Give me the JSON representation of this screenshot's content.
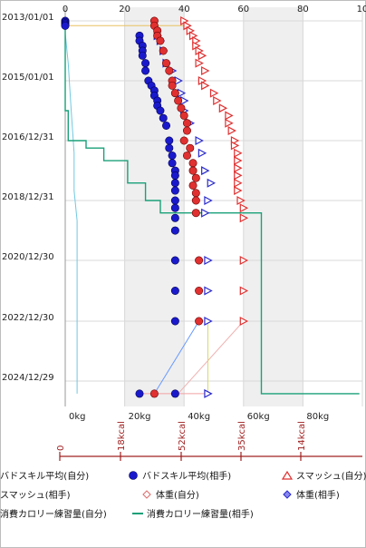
{
  "colors": {
    "badminton_self": "#1a1acc",
    "badminton_opp": "#1a1acc",
    "smash_self": "#e03030",
    "smash_opp": "#e05050",
    "weight_self": "#e07070",
    "weight_opp": "#2a2acc",
    "cal_self": "#70c8e0",
    "cal_opp": "#1aa078",
    "band": "#efefef",
    "grid": "#d8d8d8",
    "cal_axis": "#a02020"
  },
  "legend": [
    {
      "key": "badminton_self",
      "label": "バドスキル平均(自分)",
      "marker": "circle"
    },
    {
      "key": "badminton_opp",
      "label": "バドスキル平均(相手)",
      "marker": "circle"
    },
    {
      "key": "smash_self",
      "label": "スマッシュ(自分)",
      "marker": "triangle"
    },
    {
      "key": "smash_opp",
      "label": "スマッシュ(相手)",
      "marker": "open-diamond"
    },
    {
      "key": "weight_self",
      "label": "体重(自分)",
      "marker": "open-diamond"
    },
    {
      "key": "weight_opp",
      "label": "体重(相手)",
      "marker": "diamond"
    },
    {
      "key": "cal_self",
      "label": "消費カロリー練習量(自分)",
      "marker": "line"
    },
    {
      "key": "cal_opp",
      "label": "消費カロリー練習量(相手)",
      "marker": "line"
    }
  ],
  "chart_data": {
    "type": "scatter",
    "orientation": "date-on-vertical-axis",
    "x_ticks_top": [
      "0",
      "20",
      "40",
      "60",
      "80",
      "10"
    ],
    "x_ticks_bottom": [
      "0kg",
      "20kg",
      "40kg",
      "60kg",
      "80kg"
    ],
    "xlim": [
      0,
      100
    ],
    "y_ticks": [
      "2013/01/01",
      "2015/01/01",
      "2016/12/31",
      "2018/12/31",
      "2020/12/30",
      "2022/12/30",
      "2024/12/29"
    ],
    "calorie_axis_ticks": [
      "0",
      "18kcal",
      "52kcal",
      "35kcal",
      "14kcal"
    ],
    "calorie_axis_ticks_display": [
      "0",
      "18kcal",
      "52kcal",
      "35kcal",
      "14kcal"
    ],
    "grid": true,
    "bands_x": [
      [
        20,
        40
      ],
      [
        60,
        80
      ]
    ],
    "series": [
      {
        "key": "badminton_self",
        "name": "バドスキル平均(自分)",
        "points": [
          [
            "2013/01/01",
            0
          ],
          [
            "2013/01/15",
            0
          ],
          [
            "2013/02/01",
            0
          ],
          [
            "2013/02/15",
            0
          ],
          [
            "2013/03/01",
            0
          ],
          [
            "2025/06/01",
            25
          ]
        ]
      },
      {
        "key": "badminton_opp",
        "name": "バドスキル平均(相手)",
        "points": [
          [
            "2013/07/01",
            25
          ],
          [
            "2013/09/01",
            25
          ],
          [
            "2013/11/01",
            26
          ],
          [
            "2014/01/01",
            26
          ],
          [
            "2014/03/01",
            26
          ],
          [
            "2014/06/01",
            27
          ],
          [
            "2014/09/01",
            27
          ],
          [
            "2015/01/01",
            28
          ],
          [
            "2015/03/01",
            29
          ],
          [
            "2015/05/01",
            30
          ],
          [
            "2015/07/01",
            30
          ],
          [
            "2015/09/01",
            31
          ],
          [
            "2015/11/01",
            31
          ],
          [
            "2016/01/01",
            32
          ],
          [
            "2016/04/01",
            33
          ],
          [
            "2016/07/01",
            34
          ],
          [
            "2016/12/31",
            35
          ],
          [
            "2017/04/01",
            35
          ],
          [
            "2017/07/01",
            36
          ],
          [
            "2017/10/01",
            36
          ],
          [
            "2018/01/01",
            37
          ],
          [
            "2018/03/01",
            37
          ],
          [
            "2018/06/01",
            37
          ],
          [
            "2018/09/01",
            37
          ],
          [
            "2018/12/31",
            37
          ],
          [
            "2019/04/01",
            37
          ],
          [
            "2019/08/01",
            37
          ],
          [
            "2020/01/01",
            37
          ],
          [
            "2020/12/30",
            37
          ],
          [
            "2021/12/30",
            37
          ],
          [
            "2022/12/30",
            37
          ],
          [
            "2025/06/01",
            37
          ]
        ]
      },
      {
        "key": "smash_self",
        "name": "スマッシュ(自分)",
        "points": [
          [
            "2013/01/01",
            40
          ],
          [
            "2013/03/01",
            41
          ],
          [
            "2013/05/01",
            42
          ],
          [
            "2013/07/01",
            43
          ],
          [
            "2013/09/01",
            44
          ],
          [
            "2013/11/01",
            44
          ],
          [
            "2014/01/01",
            45
          ],
          [
            "2014/03/01",
            46
          ],
          [
            "2014/06/01",
            45
          ],
          [
            "2014/09/01",
            47
          ],
          [
            "2015/01/01",
            46
          ],
          [
            "2015/03/01",
            47
          ],
          [
            "2015/06/01",
            50
          ],
          [
            "2015/09/01",
            51
          ],
          [
            "2015/12/01",
            53
          ],
          [
            "2016/03/01",
            55
          ],
          [
            "2016/06/01",
            55
          ],
          [
            "2016/09/01",
            56
          ],
          [
            "2016/12/31",
            57
          ],
          [
            "2017/03/01",
            57
          ],
          [
            "2017/06/01",
            58
          ],
          [
            "2017/09/01",
            58
          ],
          [
            "2017/12/01",
            58
          ],
          [
            "2018/03/01",
            58
          ],
          [
            "2018/06/01",
            58
          ],
          [
            "2018/09/01",
            58
          ],
          [
            "2018/12/31",
            59
          ],
          [
            "2019/04/01",
            60
          ],
          [
            "2019/08/01",
            60
          ],
          [
            "2020/12/30",
            60
          ],
          [
            "2021/12/30",
            60
          ],
          [
            "2022/12/30",
            60
          ]
        ]
      },
      {
        "key": "smash_opp",
        "name": "スマッシュ(相手)",
        "points": [
          [
            "2013/01/01",
            30
          ],
          [
            "2013/03/01",
            30
          ],
          [
            "2013/05/01",
            31
          ],
          [
            "2013/07/01",
            31
          ],
          [
            "2013/09/01",
            32
          ],
          [
            "2014/01/01",
            33
          ],
          [
            "2014/06/01",
            34
          ],
          [
            "2014/09/01",
            35
          ],
          [
            "2015/01/01",
            36
          ],
          [
            "2015/03/01",
            36
          ],
          [
            "2015/06/01",
            37
          ],
          [
            "2015/09/01",
            38
          ],
          [
            "2015/12/01",
            39
          ],
          [
            "2016/03/01",
            40
          ],
          [
            "2016/06/01",
            41
          ],
          [
            "2016/09/01",
            41
          ],
          [
            "2016/12/31",
            40
          ],
          [
            "2017/04/01",
            42
          ],
          [
            "2017/07/01",
            41
          ],
          [
            "2017/10/01",
            43
          ],
          [
            "2018/01/01",
            43
          ],
          [
            "2018/04/01",
            44
          ],
          [
            "2018/07/01",
            43
          ],
          [
            "2018/10/01",
            44
          ],
          [
            "2018/12/31",
            44
          ],
          [
            "2019/06/01",
            44
          ],
          [
            "2020/12/30",
            45
          ],
          [
            "2021/12/30",
            45
          ],
          [
            "2022/12/30",
            45
          ],
          [
            "2025/06/01",
            30
          ]
        ]
      },
      {
        "key": "weight_self",
        "name": "体重(自分)",
        "points": [
          [
            "2013/01/01",
            0
          ],
          [
            "2013/03/01",
            0
          ],
          [
            "2025/06/01",
            40
          ]
        ]
      },
      {
        "key": "weight_opp",
        "name": "体重(相手)",
        "points": [
          [
            "2013/07/01",
            31
          ],
          [
            "2013/09/01",
            32
          ],
          [
            "2014/01/01",
            33
          ],
          [
            "2014/06/01",
            34
          ],
          [
            "2014/09/01",
            36
          ],
          [
            "2015/01/01",
            38
          ],
          [
            "2015/06/01",
            39
          ],
          [
            "2015/09/01",
            40
          ],
          [
            "2016/01/01",
            40
          ],
          [
            "2016/06/01",
            42
          ],
          [
            "2016/12/31",
            45
          ],
          [
            "2017/06/01",
            46
          ],
          [
            "2018/01/01",
            47
          ],
          [
            "2018/06/01",
            49
          ],
          [
            "2018/12/31",
            48
          ],
          [
            "2019/06/01",
            47
          ],
          [
            "2020/12/30",
            48
          ],
          [
            "2021/12/30",
            48
          ],
          [
            "2022/12/30",
            48
          ],
          [
            "2025/06/01",
            48
          ]
        ]
      },
      {
        "key": "cal_self",
        "name": "消費カロリー練習量(自分)",
        "type": "line",
        "points": [
          [
            "2013/01/01",
            0
          ],
          [
            "2013/06/01",
            0
          ],
          [
            "2014/06/01",
            1
          ],
          [
            "2016/01/01",
            2
          ],
          [
            "2017/06/01",
            3
          ],
          [
            "2018/09/01",
            3
          ],
          [
            "2019/09/01",
            4
          ],
          [
            "2020/03/01",
            4
          ],
          [
            "2025/06/01",
            4
          ]
        ]
      },
      {
        "key": "cal_opp",
        "name": "消費カロリー練習量(相手)",
        "type": "line",
        "points": [
          [
            "2013/01/01",
            0
          ],
          [
            "2016/01/01",
            0
          ],
          [
            "2016/01/01",
            1
          ],
          [
            "2016/12/31",
            1
          ],
          [
            "2016/12/31",
            7
          ],
          [
            "2017/04/01",
            7
          ],
          [
            "2017/04/01",
            13
          ],
          [
            "2017/09/01",
            13
          ],
          [
            "2017/09/01",
            21
          ],
          [
            "2018/06/01",
            21
          ],
          [
            "2018/06/01",
            27
          ],
          [
            "2018/12/31",
            27
          ],
          [
            "2018/12/31",
            32
          ],
          [
            "2019/06/01",
            32
          ],
          [
            "2019/06/01",
            66
          ],
          [
            "2025/06/01",
            66
          ],
          [
            "2025/06/01",
            99
          ]
        ]
      }
    ]
  }
}
